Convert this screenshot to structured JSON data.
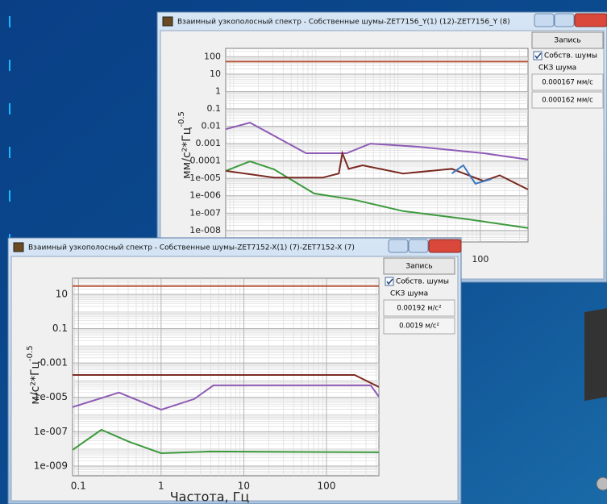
{
  "windows": [
    {
      "title": "Взаимный узкополосный спектр - Собственные шумы-ZET7156_Y(1) (12)-ZET7156_Y (8)",
      "panel": {
        "button": "Запись",
        "checkbox": "Собств. шумы",
        "rms_label": "СКЗ шума",
        "fields": [
          "0.000167 мм/с",
          "0.000162 мм/с"
        ]
      },
      "chart": {
        "type": "line",
        "log_x": true,
        "log_y": true,
        "grid": true,
        "ylabel": {
          "main": "мм/с²*Гц",
          "exp": "-0.5"
        },
        "xlim": [
          0.08,
          380
        ],
        "ylim": [
          2.2e-09,
          300
        ],
        "xticks": [
          100
        ],
        "yticks": [
          100,
          10,
          1,
          0.1,
          0.01,
          0.001,
          0.0001,
          {
            "value": 1e-05,
            "label": "1e-005"
          },
          {
            "value": 1e-06,
            "label": "1e-006"
          },
          {
            "value": 1e-07,
            "label": "1e-007"
          },
          {
            "value": 1e-08,
            "label": "1e-008"
          }
        ],
        "series": [
          {
            "color": "#b5553a",
            "x": [
              0.08,
              378
            ],
            "values": [
              52,
              52
            ]
          },
          {
            "color": "#8e5bb5",
            "x": [
              0.08,
              0.158,
              0.76,
              2.36,
              4.6,
              18,
              110,
              378
            ],
            "values": [
              0.0068,
              0.016,
              0.00028,
              0.00028,
              0.001,
              0.00065,
              0.00028,
              0.00012
            ]
          },
          {
            "color": "#3d9a3d",
            "x": [
              0.08,
              0.158,
              0.31,
              0.95,
              2.95,
              11.5,
              69,
              378
            ],
            "values": [
              2.7e-05,
              9.5e-05,
              3.3e-05,
              1.35e-06,
              5.8e-07,
              1.3e-07,
              4.5e-08,
              1.4e-08
            ]
          },
          {
            "color": "#7a2a22",
            "x": [
              0.08,
              0.31,
              1.2,
              1.9,
              2.1,
              2.5,
              3.7,
              11.5,
              45,
              110,
              172,
              378
            ],
            "values": [
              2.7e-05,
              1.1e-05,
              1.1e-05,
              1.9e-05,
              0.00028,
              3.5e-05,
              5.6e-05,
              1.9e-05,
              3.5e-05,
              7e-06,
              1.5e-05,
              2.3e-06
            ]
          },
          {
            "color": "#3a78c0",
            "x": [
              45,
              62,
              87,
              137
            ],
            "values": [
              1.9e-05,
              5.6e-05,
              4.9e-06,
              9.2e-06
            ]
          }
        ]
      }
    },
    {
      "title": "Взаимный узкополосный спектр - Собственные шумы-ZET7152-X(1) (7)-ZET7152-X (7)",
      "panel": {
        "button": "Запись",
        "checkbox": "Собств. шумы",
        "rms_label": "СКЗ шума",
        "fields": [
          "0.00192 м/с²",
          "0.0019 м/с²"
        ]
      },
      "chart": {
        "type": "line",
        "log_x": true,
        "log_y": true,
        "grid": true,
        "xlabel": "Частота, Гц",
        "ylabel": {
          "main": "м/с²*Гц",
          "exp": "-0.5"
        },
        "xlim": [
          0.085,
          430
        ],
        "ylim": [
          2.7e-10,
          87
        ],
        "xticks": [
          0.1,
          1,
          10,
          100
        ],
        "yticks": [
          10,
          0.1,
          0.001,
          {
            "value": 1e-05,
            "label": "1e-005"
          },
          {
            "value": 1e-07,
            "label": "1e-007"
          },
          {
            "value": 1e-09,
            "label": "1e-009"
          }
        ],
        "series": [
          {
            "color": "#b5553a",
            "x": [
              0.085,
              430
            ],
            "values": [
              30,
              30
            ]
          },
          {
            "color": "#7a2a22",
            "x": [
              0.085,
              219,
              430
            ],
            "values": [
              0.0002,
              0.0002,
              4e-05
            ]
          },
          {
            "color": "#8e5bb5",
            "x": [
              0.085,
              0.31,
              1.0,
              2.5,
              4.3,
              9.5,
              343,
              430
            ],
            "values": [
              2.7e-06,
              1.9e-05,
              1.9e-06,
              7.9e-06,
              5e-05,
              5e-05,
              5e-05,
              1.1e-05
            ]
          },
          {
            "color": "#3d9a3d",
            "x": [
              0.085,
              0.19,
              0.41,
              1.0,
              3.9,
              430
            ],
            "values": [
              8.7e-09,
              1.3e-07,
              2.6e-08,
              5.6e-09,
              7e-09,
              6.3e-09
            ]
          }
        ]
      }
    }
  ]
}
